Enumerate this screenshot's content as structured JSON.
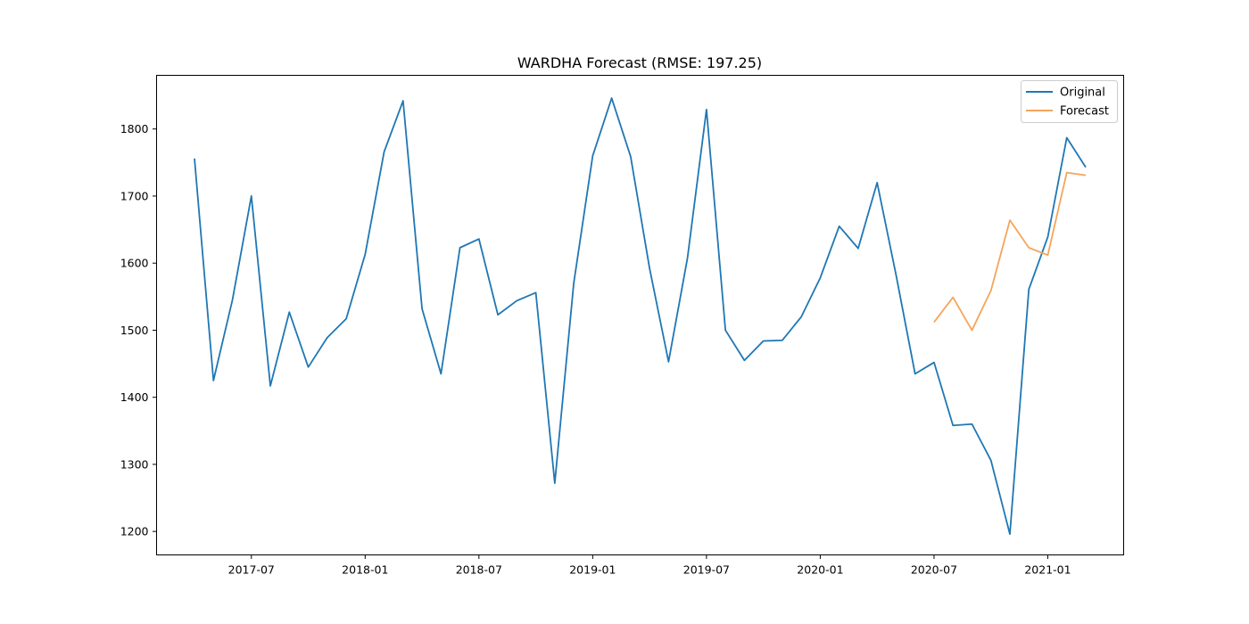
{
  "chart_data": {
    "type": "line",
    "title": "WARDHA Forecast (RMSE: 197.25)",
    "xlabel": "",
    "ylabel": "",
    "x_axis": {
      "ticks": [
        {
          "date": "2017-07",
          "label": "2017-07"
        },
        {
          "date": "2018-01",
          "label": "2018-01"
        },
        {
          "date": "2018-07",
          "label": "2018-07"
        },
        {
          "date": "2019-01",
          "label": "2019-01"
        },
        {
          "date": "2019-07",
          "label": "2019-07"
        },
        {
          "date": "2020-01",
          "label": "2020-01"
        },
        {
          "date": "2020-07",
          "label": "2020-07"
        },
        {
          "date": "2021-01",
          "label": "2021-01"
        }
      ],
      "range": [
        "2017-02",
        "2021-05"
      ]
    },
    "y_axis": {
      "ticks": [
        1200,
        1300,
        1400,
        1500,
        1600,
        1700,
        1800
      ],
      "range": [
        1165,
        1880
      ]
    },
    "grid": false,
    "legend": {
      "position": "top-right"
    },
    "series": [
      {
        "name": "Original",
        "color": "#1f77b4",
        "x": [
          "2017-04",
          "2017-05",
          "2017-06",
          "2017-07",
          "2017-08",
          "2017-09",
          "2017-10",
          "2017-11",
          "2017-12",
          "2018-01",
          "2018-02",
          "2018-03",
          "2018-04",
          "2018-05",
          "2018-06",
          "2018-07",
          "2018-08",
          "2018-09",
          "2018-10",
          "2018-11",
          "2018-12",
          "2019-01",
          "2019-02",
          "2019-03",
          "2019-04",
          "2019-05",
          "2019-06",
          "2019-07",
          "2019-08",
          "2019-09",
          "2019-10",
          "2019-11",
          "2019-12",
          "2020-01",
          "2020-02",
          "2020-03",
          "2020-04",
          "2020-05",
          "2020-06",
          "2020-07",
          "2020-08",
          "2020-09",
          "2020-10",
          "2020-11",
          "2020-12",
          "2021-01",
          "2021-02",
          "2021-03"
        ],
        "values": [
          1756,
          1425,
          1545,
          1700,
          1417,
          1527,
          1445,
          1489,
          1517,
          1613,
          1766,
          1842,
          1532,
          1435,
          1623,
          1636,
          1523,
          1544,
          1556,
          1272,
          1570,
          1760,
          1846,
          1759,
          1592,
          1453,
          1608,
          1829,
          1500,
          1455,
          1484,
          1485,
          1520,
          1578,
          1655,
          1622,
          1720,
          1582,
          1435,
          1452,
          1358,
          1360,
          1306,
          1196,
          1561,
          1639,
          1787,
          1743
        ]
      },
      {
        "name": "Forecast",
        "color": "#f4a55a",
        "x": [
          "2020-07",
          "2020-08",
          "2020-09",
          "2020-10",
          "2020-11",
          "2020-12",
          "2021-01",
          "2021-02",
          "2021-03"
        ],
        "values": [
          1512,
          1549,
          1500,
          1559,
          1664,
          1623,
          1612,
          1735,
          1731
        ]
      }
    ]
  }
}
